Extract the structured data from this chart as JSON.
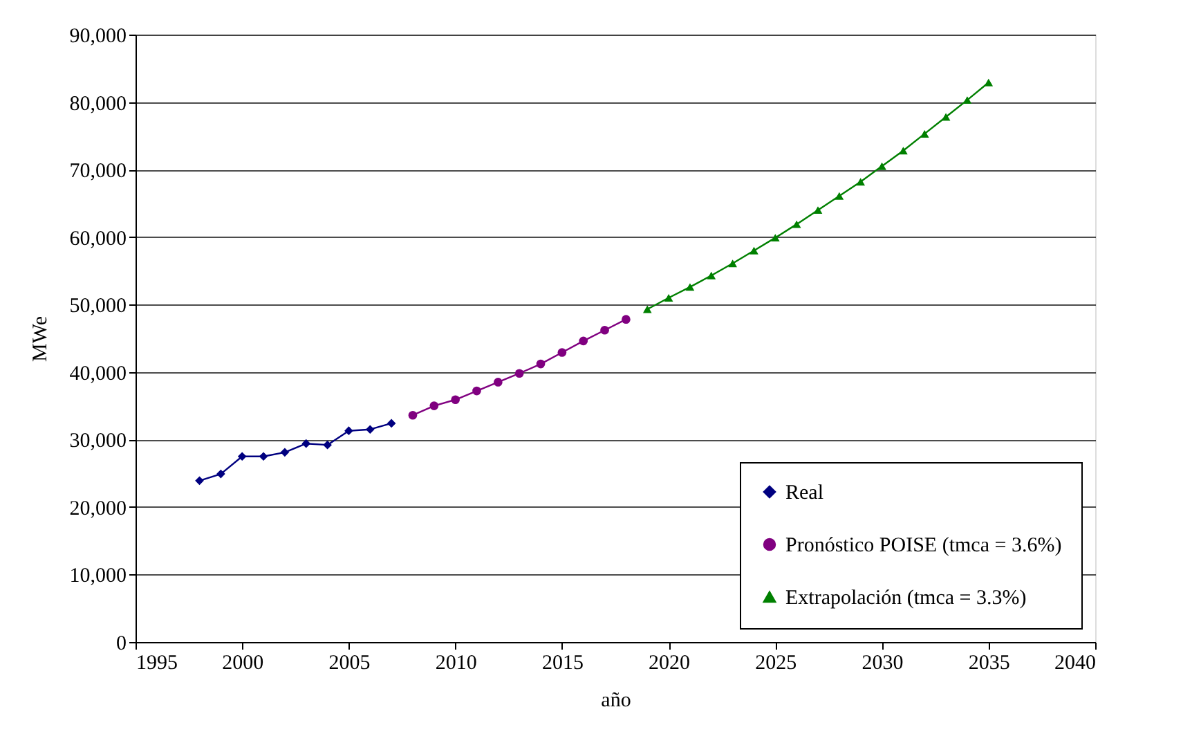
{
  "chart_data": {
    "type": "line",
    "xlabel": "año",
    "ylabel": "MWe",
    "xlim": [
      1995,
      2040
    ],
    "xticks": [
      1995,
      2000,
      2005,
      2010,
      2015,
      2020,
      2025,
      2030,
      2035,
      2040
    ],
    "ylim": [
      0,
      90000
    ],
    "yticks": [
      0,
      {
        "value": 10000,
        "label": "10,000"
      },
      {
        "value": 20000,
        "label": "20,000"
      },
      {
        "value": 30000,
        "label": "30,000"
      },
      {
        "value": 40000,
        "label": "40,000"
      },
      {
        "value": 50000,
        "label": "50,000"
      },
      {
        "value": 60000,
        "label": "60,000"
      },
      {
        "value": 70000,
        "label": "70,000"
      },
      {
        "value": 80000,
        "label": "80,000"
      },
      {
        "value": 90000,
        "label": "90,000"
      }
    ],
    "grid": "y",
    "legend": "bottom right",
    "series": [
      {
        "name": "Real",
        "color": "#000080",
        "marker": "diamond",
        "x": [
          1998,
          1999,
          2000,
          2001,
          2002,
          2003,
          2004,
          2005,
          2006,
          2007
        ],
        "values": [
          23900,
          24900,
          27500,
          27500,
          28100,
          29400,
          29200,
          31300,
          31500,
          32400
        ]
      },
      {
        "name": "Pronóstico POISE (tmca = 3.6%)",
        "color": "#800080",
        "marker": "circle",
        "x": [
          2008,
          2009,
          2010,
          2011,
          2012,
          2013,
          2014,
          2015,
          2016,
          2017,
          2018
        ],
        "values": [
          33600,
          35000,
          35900,
          37200,
          38500,
          39800,
          41200,
          42900,
          44600,
          46200,
          47800
        ]
      },
      {
        "name": "Extrapolación (tmca = 3.3%)",
        "color": "#008000",
        "marker": "triangle",
        "x": [
          2019,
          2020,
          2021,
          2022,
          2023,
          2024,
          2025,
          2026,
          2027,
          2028,
          2029,
          2030,
          2031,
          2032,
          2033,
          2034,
          2035
        ],
        "values": [
          49300,
          51000,
          52600,
          54300,
          56100,
          58000,
          59900,
          61900,
          64000,
          66100,
          68200,
          70500,
          72800,
          75300,
          77800,
          80300,
          82900
        ]
      }
    ]
  }
}
